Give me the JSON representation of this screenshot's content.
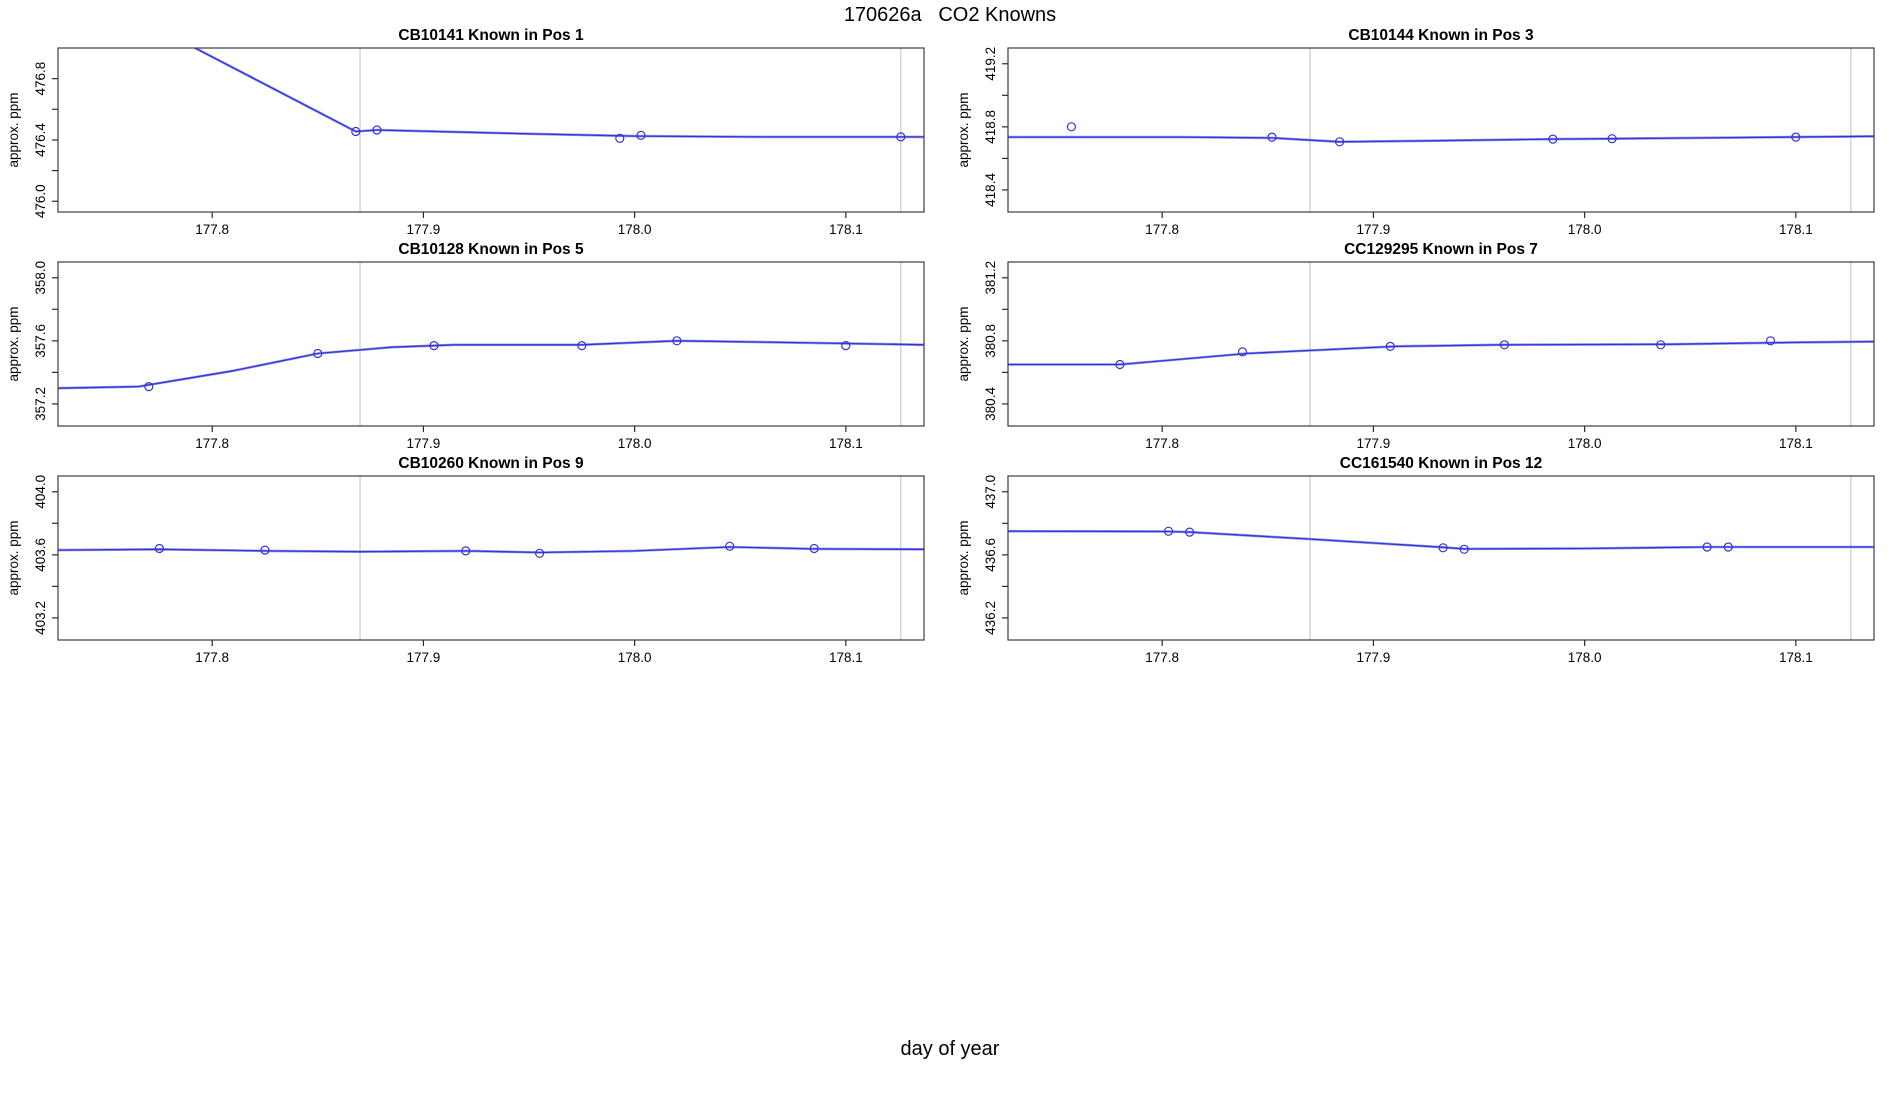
{
  "title": "170626a   CO2 Knowns",
  "xlabel": "day of year",
  "colors": {
    "line": "#3434d8",
    "smooth": "#9a9aec",
    "point": "#3434d8",
    "grid": "#d6d6d6",
    "frame": "#3c3c3c",
    "tick": "#2a2a2a",
    "text": "#000000",
    "background": "#ffffff"
  },
  "chart_data": [
    {
      "type": "line",
      "title": "CB10141   Known in Pos 1",
      "ylabel": "approx. ppm",
      "xlim": [
        177.727,
        178.137
      ],
      "ylim": [
        475.93,
        477.0
      ],
      "xticks": [
        {
          "v": 177.8,
          "label": "177.8"
        },
        {
          "v": 177.9,
          "label": "177.9"
        },
        {
          "v": 178.0,
          "label": "178.0"
        },
        {
          "v": 178.1,
          "label": "178.1"
        }
      ],
      "yticks": [
        {
          "v": 476.0,
          "label": "476.0"
        },
        {
          "v": 476.2
        },
        {
          "v": 476.4,
          "label": "476.4"
        },
        {
          "v": 476.6
        },
        {
          "v": 476.8,
          "label": "476.8"
        }
      ],
      "gridlines_x": [
        177.87,
        178.126
      ],
      "curve": [
        [
          177.75,
          477.3
        ],
        [
          177.868,
          476.455
        ],
        [
          177.878,
          476.465
        ],
        [
          177.95,
          476.44
        ],
        [
          178.0,
          476.425
        ],
        [
          178.06,
          476.42
        ],
        [
          178.137,
          476.42
        ]
      ],
      "points": [
        [
          177.868,
          476.455
        ],
        [
          177.878,
          476.465
        ],
        [
          177.993,
          476.41
        ],
        [
          178.003,
          476.43
        ],
        [
          178.126,
          476.42
        ]
      ]
    },
    {
      "type": "line",
      "title": "CB10144   Known in Pos 3",
      "ylabel": "approx. ppm",
      "xlim": [
        177.727,
        178.137
      ],
      "ylim": [
        418.26,
        419.3
      ],
      "xticks": [
        {
          "v": 177.8,
          "label": "177.8"
        },
        {
          "v": 177.9,
          "label": "177.9"
        },
        {
          "v": 178.0,
          "label": "178.0"
        },
        {
          "v": 178.1,
          "label": "178.1"
        }
      ],
      "yticks": [
        {
          "v": 418.4,
          "label": "418.4"
        },
        {
          "v": 418.6
        },
        {
          "v": 418.8,
          "label": "418.8"
        },
        {
          "v": 419.0
        },
        {
          "v": 419.2,
          "label": "419.2"
        }
      ],
      "gridlines_x": [
        177.87,
        178.126
      ],
      "curve": [
        [
          177.727,
          418.735
        ],
        [
          177.81,
          418.735
        ],
        [
          177.852,
          418.73
        ],
        [
          177.884,
          418.705
        ],
        [
          177.93,
          418.712
        ],
        [
          177.985,
          418.722
        ],
        [
          178.013,
          418.725
        ],
        [
          178.07,
          418.732
        ],
        [
          178.137,
          418.74
        ]
      ],
      "points": [
        [
          177.757,
          418.8
        ],
        [
          177.852,
          418.735
        ],
        [
          177.884,
          418.705
        ],
        [
          177.985,
          418.722
        ],
        [
          178.013,
          418.725
        ],
        [
          178.1,
          418.735
        ]
      ]
    },
    {
      "type": "line",
      "title": "CB10128   Known in Pos 5",
      "ylabel": "approx. ppm",
      "xlim": [
        177.727,
        178.137
      ],
      "ylim": [
        357.06,
        358.1
      ],
      "xticks": [
        {
          "v": 177.8,
          "label": "177.8"
        },
        {
          "v": 177.9,
          "label": "177.9"
        },
        {
          "v": 178.0,
          "label": "178.0"
        },
        {
          "v": 178.1,
          "label": "178.1"
        }
      ],
      "yticks": [
        {
          "v": 357.2,
          "label": "357.2"
        },
        {
          "v": 357.4
        },
        {
          "v": 357.6,
          "label": "357.6"
        },
        {
          "v": 357.8
        },
        {
          "v": 358.0,
          "label": "358.0"
        }
      ],
      "gridlines_x": [
        177.87,
        178.126
      ],
      "curve": [
        [
          177.727,
          357.3
        ],
        [
          177.765,
          357.31
        ],
        [
          177.81,
          357.41
        ],
        [
          177.85,
          357.52
        ],
        [
          177.885,
          357.56
        ],
        [
          177.915,
          357.575
        ],
        [
          177.975,
          357.575
        ],
        [
          178.02,
          357.6
        ],
        [
          178.07,
          357.59
        ],
        [
          178.137,
          357.575
        ]
      ],
      "points": [
        [
          177.77,
          357.31
        ],
        [
          177.85,
          357.52
        ],
        [
          177.905,
          357.57
        ],
        [
          177.975,
          357.57
        ],
        [
          178.02,
          357.6
        ],
        [
          178.1,
          357.57
        ]
      ]
    },
    {
      "type": "line",
      "title": "CC129295   Known in Pos 7",
      "ylabel": "approx. ppm",
      "xlim": [
        177.727,
        178.137
      ],
      "ylim": [
        380.26,
        381.3
      ],
      "xticks": [
        {
          "v": 177.8,
          "label": "177.8"
        },
        {
          "v": 177.9,
          "label": "177.9"
        },
        {
          "v": 178.0,
          "label": "178.0"
        },
        {
          "v": 178.1,
          "label": "178.1"
        }
      ],
      "yticks": [
        {
          "v": 380.4,
          "label": "380.4"
        },
        {
          "v": 380.6
        },
        {
          "v": 380.8,
          "label": "380.8"
        },
        {
          "v": 381.0
        },
        {
          "v": 381.2,
          "label": "381.2"
        }
      ],
      "gridlines_x": [
        177.87,
        178.126
      ],
      "curve": [
        [
          177.727,
          380.65
        ],
        [
          177.78,
          380.65
        ],
        [
          177.84,
          380.72
        ],
        [
          177.91,
          380.765
        ],
        [
          177.96,
          380.775
        ],
        [
          178.04,
          380.778
        ],
        [
          178.1,
          380.79
        ],
        [
          178.137,
          380.795
        ]
      ],
      "points": [
        [
          177.78,
          380.65
        ],
        [
          177.838,
          380.73
        ],
        [
          177.908,
          380.765
        ],
        [
          177.962,
          380.775
        ],
        [
          178.036,
          380.775
        ],
        [
          178.088,
          380.8
        ]
      ]
    },
    {
      "type": "line",
      "title": "CB10260   Known in Pos 9",
      "ylabel": "approx. ppm",
      "xlim": [
        177.727,
        178.137
      ],
      "ylim": [
        403.06,
        404.1
      ],
      "xticks": [
        {
          "v": 177.8,
          "label": "177.8"
        },
        {
          "v": 177.9,
          "label": "177.9"
        },
        {
          "v": 178.0,
          "label": "178.0"
        },
        {
          "v": 178.1,
          "label": "178.1"
        }
      ],
      "yticks": [
        {
          "v": 403.2,
          "label": "403.2"
        },
        {
          "v": 403.4
        },
        {
          "v": 403.6,
          "label": "403.6"
        },
        {
          "v": 403.8
        },
        {
          "v": 404.0,
          "label": "404.0"
        }
      ],
      "gridlines_x": [
        177.87,
        178.126
      ],
      "curve": [
        [
          177.727,
          403.63
        ],
        [
          177.775,
          403.635
        ],
        [
          177.825,
          403.625
        ],
        [
          177.87,
          403.62
        ],
        [
          177.92,
          403.625
        ],
        [
          177.955,
          403.615
        ],
        [
          178.0,
          403.625
        ],
        [
          178.045,
          403.65
        ],
        [
          178.085,
          403.638
        ],
        [
          178.137,
          403.635
        ]
      ],
      "points": [
        [
          177.775,
          403.64
        ],
        [
          177.825,
          403.63
        ],
        [
          177.92,
          403.625
        ],
        [
          177.955,
          403.61
        ],
        [
          178.045,
          403.655
        ],
        [
          178.085,
          403.64
        ]
      ]
    },
    {
      "type": "line",
      "title": "CC161540   Known in Pos 12",
      "ylabel": "approx. ppm",
      "xlim": [
        177.727,
        178.137
      ],
      "ylim": [
        436.06,
        437.1
      ],
      "xticks": [
        {
          "v": 177.8,
          "label": "177.8"
        },
        {
          "v": 177.9,
          "label": "177.9"
        },
        {
          "v": 178.0,
          "label": "178.0"
        },
        {
          "v": 178.1,
          "label": "178.1"
        }
      ],
      "yticks": [
        {
          "v": 436.2,
          "label": "436.2"
        },
        {
          "v": 436.4
        },
        {
          "v": 436.6,
          "label": "436.6"
        },
        {
          "v": 436.8
        },
        {
          "v": 437.0,
          "label": "437.0"
        }
      ],
      "gridlines_x": [
        177.87,
        178.126
      ],
      "curve": [
        [
          177.727,
          436.75
        ],
        [
          177.803,
          436.748
        ],
        [
          177.813,
          436.744
        ],
        [
          177.87,
          436.7
        ],
        [
          177.933,
          436.648
        ],
        [
          177.943,
          436.638
        ],
        [
          178.0,
          436.64
        ],
        [
          178.058,
          436.65
        ],
        [
          178.137,
          436.65
        ]
      ],
      "points": [
        [
          177.803,
          436.75
        ],
        [
          177.813,
          436.744
        ],
        [
          177.933,
          436.645
        ],
        [
          177.943,
          436.635
        ],
        [
          178.058,
          436.65
        ],
        [
          178.068,
          436.65
        ]
      ]
    }
  ]
}
